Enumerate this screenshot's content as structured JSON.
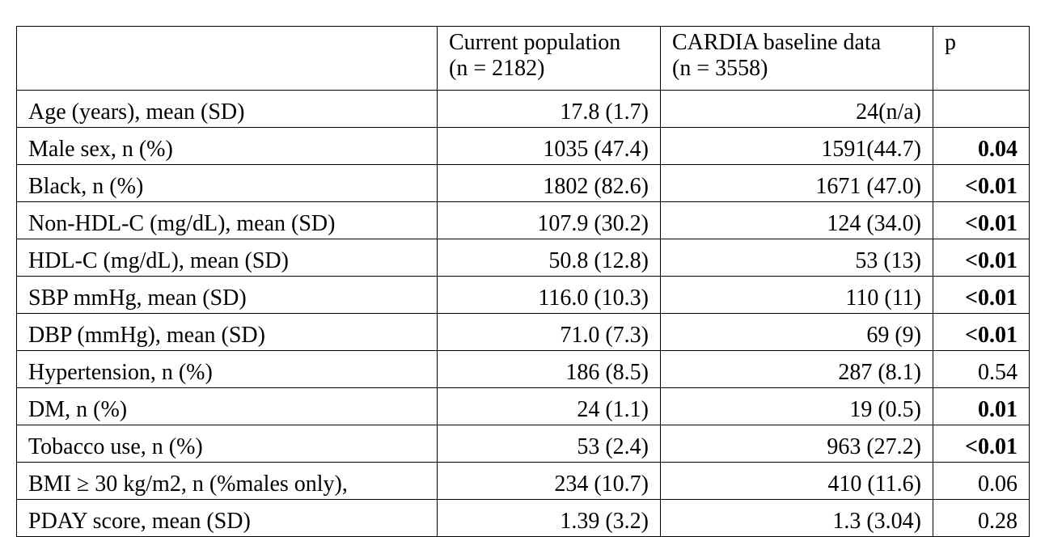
{
  "table": {
    "headers": {
      "label": "",
      "current_line1": "Current population",
      "current_line2": "(n = 2182)",
      "cardia_line1": "CARDIA baseline data",
      "cardia_line2": "(n = 3558)",
      "p": "p"
    },
    "rows": [
      {
        "label": "Age (years), mean (SD)",
        "current": "17.8 (1.7)",
        "cardia": "24(n/a)",
        "p": "",
        "p_bold": false
      },
      {
        "label": "Male sex, n (%)",
        "current": "1035 (47.4)",
        "cardia": "1591(44.7)",
        "p": "0.04",
        "p_bold": true
      },
      {
        "label": "Black, n (%)",
        "current": "1802 (82.6)",
        "cardia": "1671 (47.0)",
        "p": "<0.01",
        "p_bold": true
      },
      {
        "label": "Non-HDL-C (mg/dL), mean (SD)",
        "current": "107.9 (30.2)",
        "cardia": "124 (34.0)",
        "p": "<0.01",
        "p_bold": true
      },
      {
        "label": "HDL-C (mg/dL), mean (SD)",
        "current": "50.8 (12.8)",
        "cardia": "53 (13)",
        "p": "<0.01",
        "p_bold": true
      },
      {
        "label": "SBP mmHg, mean (SD)",
        "current": "116.0 (10.3)",
        "cardia": "110 (11)",
        "p": "<0.01",
        "p_bold": true
      },
      {
        "label": "DBP (mmHg), mean (SD)",
        "current": "71.0 (7.3)",
        "cardia": "69 (9)",
        "p": "<0.01",
        "p_bold": true
      },
      {
        "label": "Hypertension, n (%)",
        "current": "186 (8.5)",
        "cardia": "287 (8.1)",
        "p": "0.54",
        "p_bold": false
      },
      {
        "label": "DM, n (%)",
        "current": "24 (1.1)",
        "cardia": "19 (0.5)",
        "p": "0.01",
        "p_bold": true
      },
      {
        "label": "Tobacco use, n (%)",
        "current": "53 (2.4)",
        "cardia": "963 (27.2)",
        "p": "<0.01",
        "p_bold": true
      },
      {
        "label": "BMI ≥ 30 kg/m2, n (%males only),",
        "current": "234 (10.7)",
        "cardia": "410 (11.6)",
        "p": "0.06",
        "p_bold": false
      },
      {
        "label": "PDAY score, mean (SD)",
        "current": "1.39 (3.2)",
        "cardia": "1.3 (3.04)",
        "p": "0.28",
        "p_bold": false
      }
    ]
  }
}
